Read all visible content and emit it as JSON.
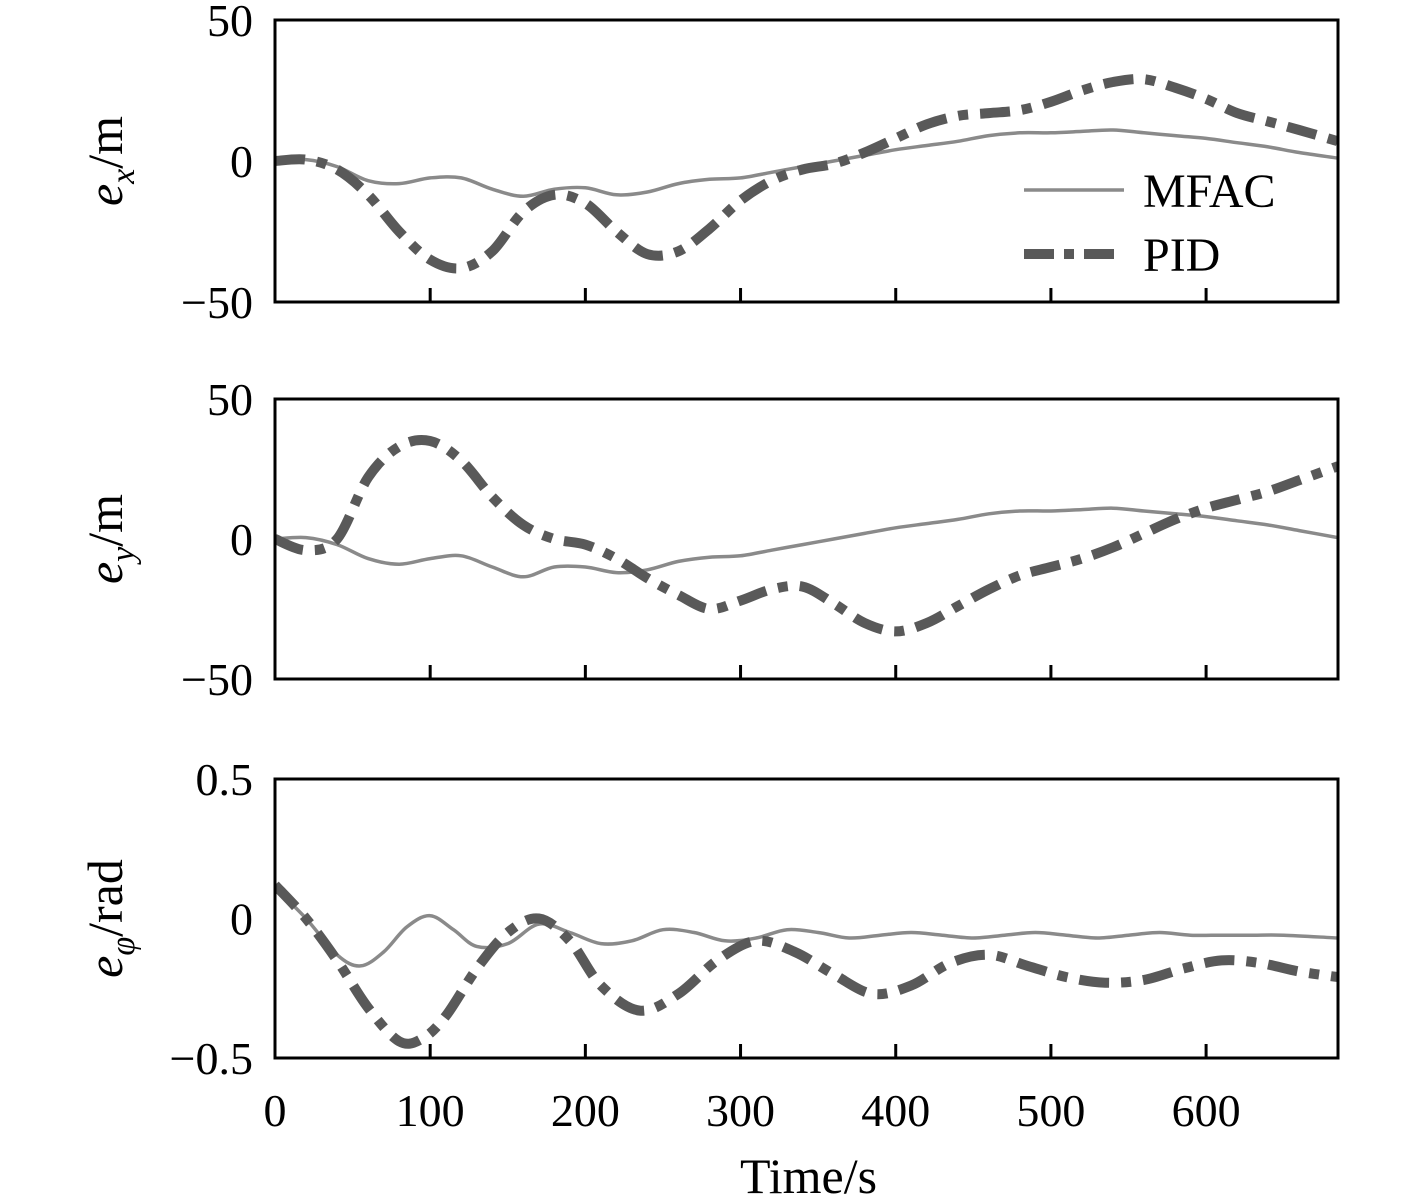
{
  "chart_data": [
    {
      "type": "line",
      "ylabel": {
        "base": "e",
        "sub": "x",
        "unit": "/m"
      },
      "ylim": [
        -50,
        50
      ],
      "yticks": [
        -50,
        0,
        50
      ],
      "ytick_labels": [
        "−50",
        "0",
        "50"
      ],
      "xlim": [
        0,
        685
      ],
      "xticks": [
        0,
        100,
        200,
        300,
        400,
        500,
        600
      ],
      "xtick_labels": [],
      "legend": {
        "placement": "right",
        "entries": [
          "MFAC",
          "PID"
        ]
      },
      "series": [
        {
          "name": "MFAC",
          "style": "solid",
          "x": [
            0,
            20,
            40,
            60,
            80,
            100,
            120,
            140,
            160,
            180,
            200,
            220,
            240,
            260,
            280,
            300,
            320,
            340,
            360,
            380,
            400,
            420,
            440,
            460,
            480,
            500,
            520,
            540,
            560,
            580,
            600,
            620,
            640,
            660,
            685
          ],
          "y": [
            0,
            0.5,
            -2,
            -7,
            -8,
            -6,
            -6,
            -10,
            -12.5,
            -10,
            -9.5,
            -12,
            -11,
            -8,
            -6.5,
            -6,
            -4,
            -2,
            0,
            2,
            4,
            5.5,
            7,
            9,
            10,
            10,
            10.5,
            11,
            10,
            9,
            8,
            6.5,
            5,
            3,
            1
          ]
        },
        {
          "name": "PID",
          "style": "dashdot",
          "x": [
            0,
            20,
            40,
            60,
            80,
            100,
            120,
            140,
            160,
            180,
            200,
            220,
            240,
            260,
            280,
            300,
            320,
            340,
            360,
            380,
            400,
            420,
            440,
            460,
            480,
            500,
            520,
            540,
            560,
            580,
            600,
            620,
            640,
            660,
            685
          ],
          "y": [
            0,
            0.5,
            -3,
            -12,
            -25,
            -35,
            -38,
            -32,
            -18,
            -12,
            -15,
            -25,
            -33,
            -32,
            -24,
            -14,
            -7,
            -3,
            -1,
            3,
            8,
            13,
            16,
            17,
            18,
            21,
            25,
            28,
            29,
            26,
            22,
            17,
            14,
            11,
            7
          ]
        }
      ]
    },
    {
      "type": "line",
      "ylabel": {
        "base": "e",
        "sub": "y",
        "unit": "/m"
      },
      "ylim": [
        -50,
        50
      ],
      "yticks": [
        -50,
        0,
        50
      ],
      "ytick_labels": [
        "−50",
        "0",
        "50"
      ],
      "xlim": [
        0,
        685
      ],
      "xticks": [
        0,
        100,
        200,
        300,
        400,
        500,
        600
      ],
      "xtick_labels": [],
      "series": [
        {
          "name": "MFAC",
          "style": "solid",
          "x": [
            0,
            20,
            40,
            60,
            80,
            100,
            120,
            140,
            160,
            180,
            200,
            220,
            240,
            260,
            280,
            300,
            320,
            340,
            360,
            380,
            400,
            420,
            440,
            460,
            480,
            500,
            520,
            540,
            560,
            580,
            600,
            620,
            640,
            660,
            685
          ],
          "y": [
            0,
            0.5,
            -2,
            -7,
            -9,
            -7,
            -6,
            -10,
            -13.5,
            -10,
            -10,
            -12,
            -11,
            -8,
            -6.5,
            -6,
            -4,
            -2,
            0,
            2,
            4,
            5.5,
            7,
            9,
            10,
            10,
            10.5,
            11,
            10,
            9,
            8,
            6.5,
            5,
            3,
            0.5
          ]
        },
        {
          "name": "PID",
          "style": "dashdot",
          "x": [
            0,
            20,
            40,
            60,
            80,
            100,
            120,
            140,
            160,
            180,
            200,
            220,
            240,
            260,
            280,
            300,
            320,
            340,
            360,
            380,
            400,
            420,
            440,
            460,
            480,
            500,
            520,
            540,
            560,
            580,
            600,
            620,
            640,
            660,
            685
          ],
          "y": [
            0,
            -4,
            0,
            22,
            33,
            35,
            28,
            15,
            5,
            0,
            -2,
            -7,
            -14,
            -20,
            -25,
            -22,
            -18,
            -17,
            -23,
            -30,
            -33,
            -30,
            -24,
            -18,
            -13,
            -10,
            -7,
            -3,
            2,
            7,
            11,
            14,
            17,
            21,
            26
          ]
        }
      ]
    },
    {
      "type": "line",
      "ylabel": {
        "base": "e",
        "sub": "φ",
        "unit": "/rad"
      },
      "ylim": [
        -0.5,
        0.5
      ],
      "yticks": [
        -0.5,
        0,
        0.5
      ],
      "ytick_labels": [
        "−0.5",
        "0",
        "0.5"
      ],
      "xlim": [
        0,
        685
      ],
      "xticks": [
        0,
        100,
        200,
        300,
        400,
        500,
        600
      ],
      "xtick_labels": [
        "0",
        "100",
        "200",
        "300",
        "400",
        "500",
        "600"
      ],
      "xlabel": "Time/s",
      "series": [
        {
          "name": "MFAC",
          "style": "solid",
          "x": [
            0,
            20,
            40,
            55,
            70,
            85,
            100,
            115,
            130,
            150,
            170,
            190,
            210,
            230,
            250,
            270,
            290,
            310,
            330,
            350,
            370,
            390,
            410,
            430,
            450,
            470,
            490,
            510,
            530,
            550,
            570,
            590,
            610,
            630,
            650,
            685
          ],
          "y": [
            0.11,
            0,
            -0.13,
            -0.17,
            -0.12,
            -0.03,
            0.01,
            -0.04,
            -0.1,
            -0.09,
            -0.02,
            -0.05,
            -0.09,
            -0.08,
            -0.04,
            -0.05,
            -0.08,
            -0.07,
            -0.04,
            -0.05,
            -0.07,
            -0.06,
            -0.05,
            -0.06,
            -0.07,
            -0.06,
            -0.05,
            -0.06,
            -0.07,
            -0.06,
            -0.05,
            -0.06,
            -0.06,
            -0.06,
            -0.06,
            -0.07
          ]
        },
        {
          "name": "PID",
          "style": "dashdot",
          "x": [
            0,
            20,
            40,
            60,
            80,
            95,
            110,
            130,
            150,
            170,
            190,
            210,
            235,
            260,
            285,
            310,
            335,
            360,
            385,
            410,
            435,
            460,
            485,
            510,
            535,
            560,
            585,
            610,
            635,
            660,
            685
          ],
          "y": [
            0.12,
            0,
            -0.15,
            -0.32,
            -0.44,
            -0.43,
            -0.35,
            -0.18,
            -0.05,
            0,
            -0.08,
            -0.24,
            -0.33,
            -0.27,
            -0.15,
            -0.08,
            -0.12,
            -0.2,
            -0.27,
            -0.24,
            -0.16,
            -0.13,
            -0.17,
            -0.21,
            -0.23,
            -0.22,
            -0.18,
            -0.15,
            -0.16,
            -0.19,
            -0.21
          ]
        }
      ]
    }
  ]
}
